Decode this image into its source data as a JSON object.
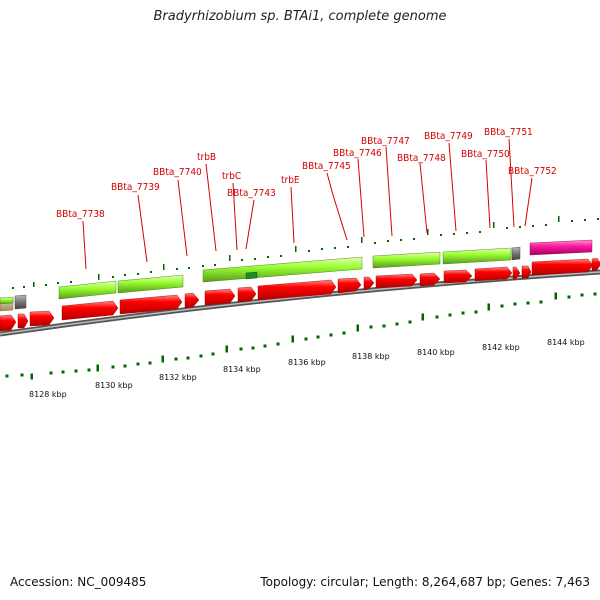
{
  "title": "Bradyrhizobium sp. BTAi1, complete genome",
  "footer": {
    "accession": "Accession: NC_009485",
    "stats": "Topology: circular; Length: 8,264,687 bp; Genes: 7,463"
  },
  "colors": {
    "cds_forward": "#ff0000",
    "cds_block": "#99ff33",
    "rna": "#ff1aa3",
    "other": "#777777",
    "gene_label": "#d40000",
    "tick": "#006600",
    "backbone": "#888888"
  },
  "scale": {
    "unit": "kbp",
    "labels": [
      {
        "kbp": 8128,
        "text": "8128 kbp"
      },
      {
        "kbp": 8130,
        "text": "8130 kbp"
      },
      {
        "kbp": 8132,
        "text": "8132 kbp"
      },
      {
        "kbp": 8134,
        "text": "8134 kbp"
      },
      {
        "kbp": 8136,
        "text": "8136 kbp"
      },
      {
        "kbp": 8138,
        "text": "8138 kbp"
      },
      {
        "kbp": 8140,
        "text": "8140 kbp"
      },
      {
        "kbp": 8142,
        "text": "8142 kbp"
      },
      {
        "kbp": 8144,
        "text": "8144 kbp"
      }
    ]
  },
  "gene_labels": [
    {
      "id": "g7738",
      "text": "BBta_7738",
      "kbp": 8129.6
    },
    {
      "id": "g7739",
      "text": "BBta_7739",
      "kbp": 8131.4
    },
    {
      "id": "g7740",
      "text": "BBta_7740",
      "kbp": 8132.5
    },
    {
      "id": "trbB",
      "text": "trbB",
      "kbp": 8133.4
    },
    {
      "id": "trbC",
      "text": "trbC",
      "kbp": 8134.1
    },
    {
      "id": "g7743",
      "text": "BBta_7743",
      "kbp": 8134.3
    },
    {
      "id": "trbE",
      "text": "trbE",
      "kbp": 8135.6
    },
    {
      "id": "g7745",
      "text": "BBta_7745",
      "kbp": 8137.2
    },
    {
      "id": "g7746",
      "text": "BBta_7746",
      "kbp": 8137.8
    },
    {
      "id": "g7747",
      "text": "BBta_7747",
      "kbp": 8138.7
    },
    {
      "id": "g7748",
      "text": "BBta_7748",
      "kbp": 8139.8
    },
    {
      "id": "g7749",
      "text": "BBta_7749",
      "kbp": 8140.7
    },
    {
      "id": "g7750",
      "text": "BBta_7750",
      "kbp": 8141.7
    },
    {
      "id": "g7751",
      "text": "BBta_7751",
      "kbp": 8142.3
    },
    {
      "id": "g7752",
      "text": "BBta_7752",
      "kbp": 8142.7
    }
  ]
}
